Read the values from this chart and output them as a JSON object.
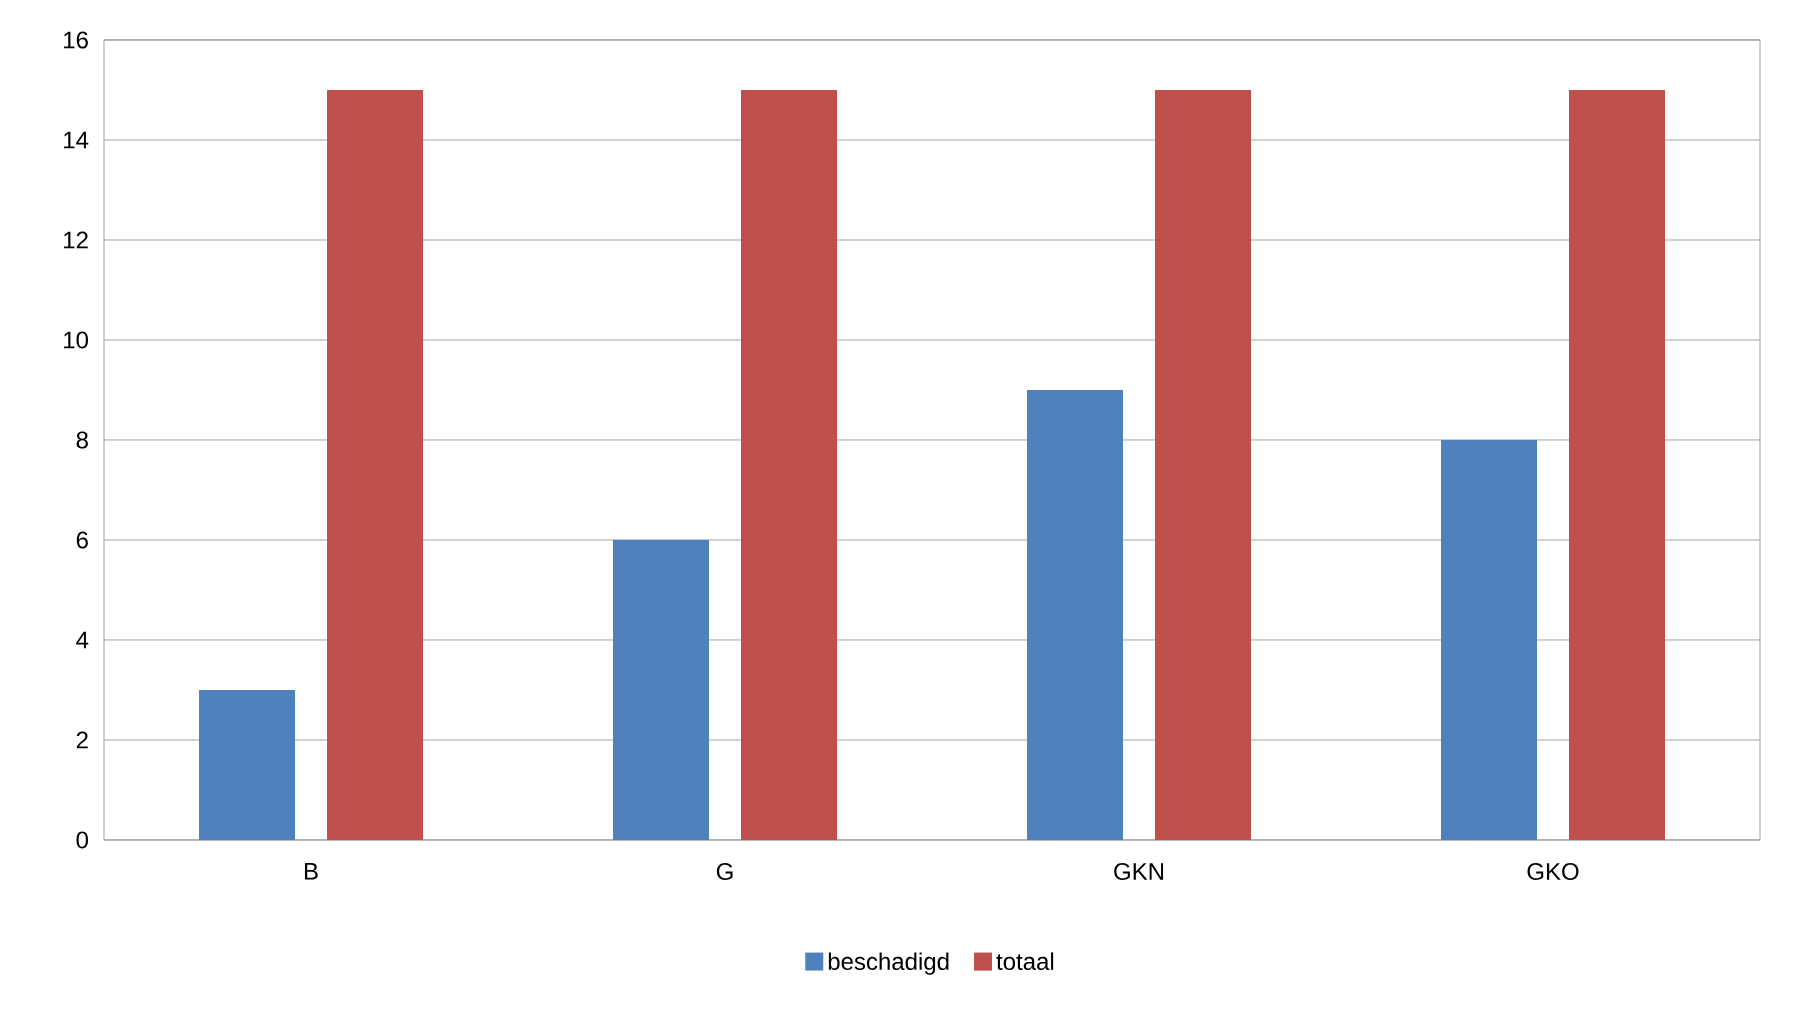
{
  "chart_data": {
    "type": "bar",
    "categories": [
      "B",
      "G",
      "GKN",
      "GKO"
    ],
    "series": [
      {
        "name": "beschadigd",
        "color": "#4f81bd",
        "values": [
          3,
          6,
          9,
          8
        ]
      },
      {
        "name": "totaal",
        "color": "#c0504d",
        "values": [
          15,
          15,
          15,
          15
        ]
      }
    ],
    "ylim": [
      0,
      16
    ],
    "yticks": [
      0,
      2,
      4,
      6,
      8,
      10,
      12,
      14,
      16
    ],
    "grid": "y",
    "legend": "bottom"
  }
}
